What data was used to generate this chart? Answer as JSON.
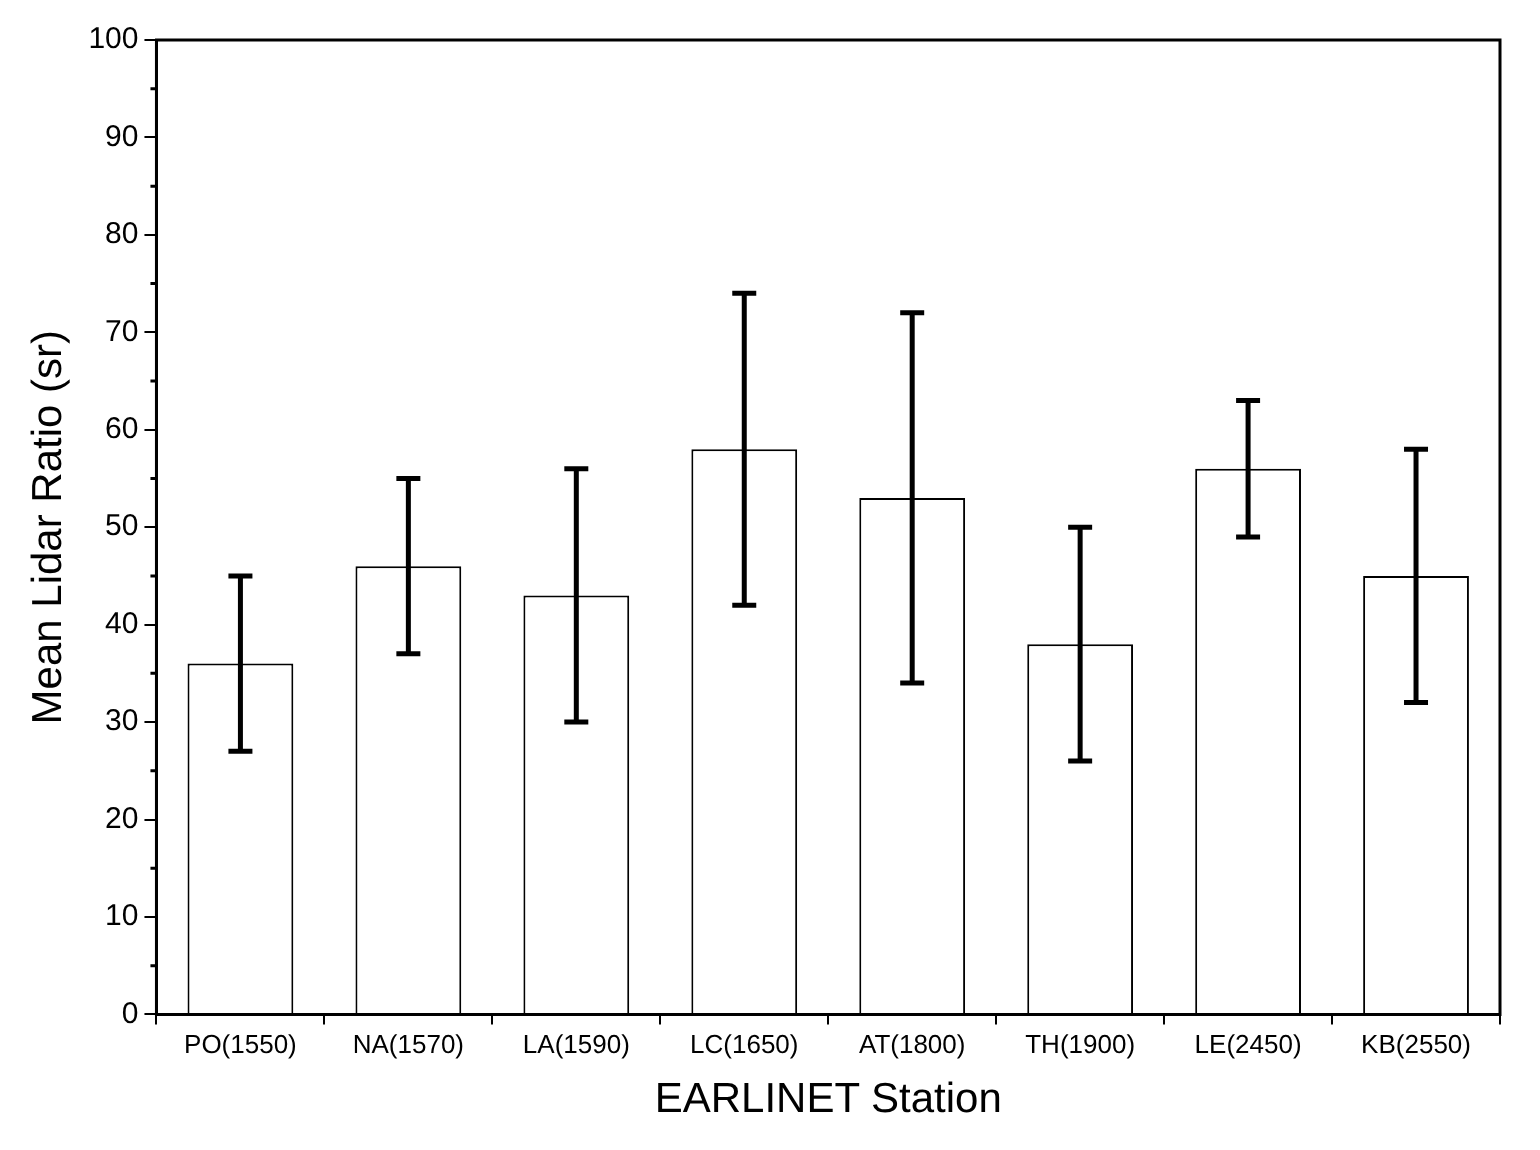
{
  "chart_data": {
    "type": "bar",
    "xlabel": "EARLINET Station",
    "ylabel": "Mean Lidar Ratio (sr)",
    "categories": [
      "PO(1550)",
      "NA(1570)",
      "LA(1590)",
      "LC(1650)",
      "AT(1800)",
      "TH(1900)",
      "LE(2450)",
      "KB(2550)"
    ],
    "values": [
      36,
      46,
      43,
      58,
      53,
      38,
      56,
      45
    ],
    "errors": [
      9,
      9,
      13,
      16,
      19,
      12,
      7,
      13
    ],
    "color": "#ffffff",
    "ylim": [
      0,
      100
    ],
    "yticks": [
      0,
      10,
      20,
      30,
      40,
      50,
      60,
      70,
      80,
      90,
      100
    ],
    "grid": false,
    "legend": false
  }
}
